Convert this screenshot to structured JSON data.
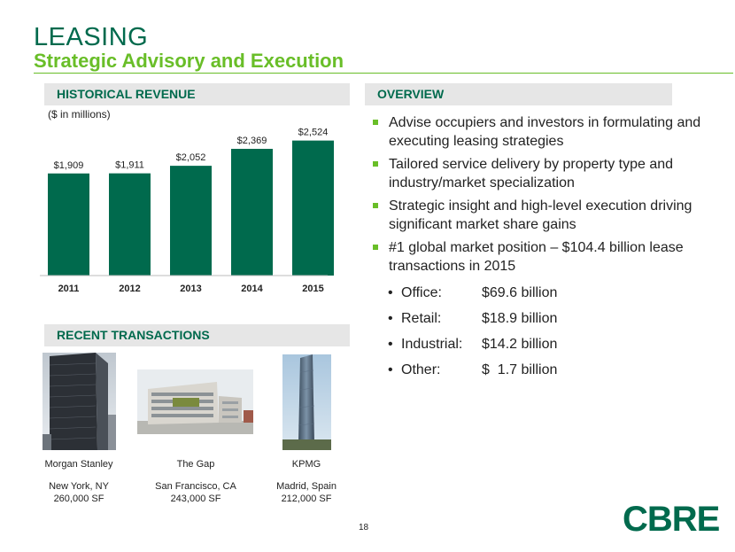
{
  "header": {
    "title": "LEASING",
    "subtitle": "Strategic Advisory and Execution"
  },
  "sections": {
    "revenue": "HISTORICAL REVENUE",
    "overview": "OVERVIEW",
    "transactions": "RECENT TRANSACTIONS"
  },
  "chart_units": "($ in millions)",
  "chart_data": {
    "type": "bar",
    "categories": [
      "2011",
      "2012",
      "2013",
      "2014",
      "2015"
    ],
    "values": [
      1909,
      1911,
      2052,
      2369,
      2524
    ],
    "value_labels": [
      "$1,909",
      "$1,911",
      "$2,052",
      "$2,369",
      "$2,524"
    ],
    "ylim": [
      0,
      2700
    ],
    "bar_color": "#006a4d",
    "grid": false
  },
  "overview": {
    "bullets": [
      "Advise occupiers and investors in formulating and executing leasing strategies",
      "Tailored service delivery by property type and industry/market specialization",
      "Strategic insight and high-level execution driving significant market share gains",
      "#1 global market position – $104.4 billion lease transactions in 2015"
    ],
    "sub_items": [
      {
        "label": "Office:",
        "value": "$69.6 billion"
      },
      {
        "label": "Retail:",
        "value": "$18.9 billion"
      },
      {
        "label": "Industrial:",
        "value": "$14.2 billion"
      },
      {
        "label": "Other:",
        "value": "$  1.7 billion"
      }
    ]
  },
  "transactions": [
    {
      "name": "Morgan Stanley",
      "location": "New York, NY",
      "size": "260,000 SF"
    },
    {
      "name": "The Gap",
      "location": "San Francisco, CA",
      "size": "243,000 SF"
    },
    {
      "name": "KPMG",
      "location": "Madrid, Spain",
      "size": "212,000 SF"
    }
  ],
  "page_number": "18",
  "logo_text": "CBRE",
  "colors": {
    "brand_dark_green": "#006a4d",
    "brand_light_green": "#69be28",
    "section_bar": "#e6e6e6"
  }
}
